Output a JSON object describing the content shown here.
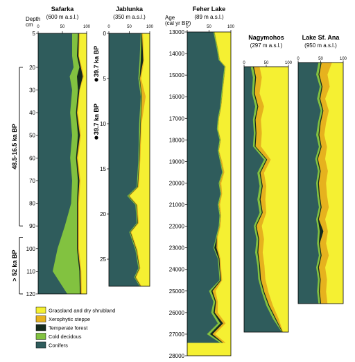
{
  "colors": {
    "grassland": "#f5f032",
    "xerophytic": "#e6b21e",
    "temperate": "#152a1d",
    "cold": "#82c240",
    "conifers": "#2f5c5c"
  },
  "chart_data": [
    {
      "type": "area",
      "title": "Safarka",
      "subtitle": "(600 m a.s.l.)",
      "ylabel": "Depth",
      "yunit": "cm",
      "ylim": [
        5,
        120
      ],
      "yticks": [
        5,
        20,
        30,
        40,
        50,
        60,
        70,
        80,
        90,
        100,
        110,
        120
      ],
      "xlim": [
        0,
        100
      ],
      "xticks": [
        0,
        50,
        100
      ],
      "zones": [
        {
          "label": "48.5-16.5 ka BP",
          "from": 20,
          "to": 90
        },
        {
          "label": "> 52 ka BP",
          "from": 95,
          "to": 120
        }
      ],
      "y": [
        5,
        15,
        20,
        24,
        30,
        40,
        50,
        60,
        70,
        80,
        90,
        100,
        110,
        120
      ],
      "conifers": [
        70,
        70,
        73,
        65,
        70,
        66,
        70,
        66,
        70,
        68,
        55,
        40,
        30,
        60
      ],
      "cold": [
        82,
        80,
        85,
        80,
        82,
        78,
        82,
        78,
        82,
        80,
        80,
        80,
        85,
        86
      ],
      "temperate": [
        84,
        83,
        88,
        92,
        85,
        80,
        86,
        80,
        85,
        82,
        82,
        82,
        87,
        88
      ],
      "xerophytic": [
        86,
        84,
        90,
        94,
        86,
        82,
        88,
        82,
        87,
        84,
        84,
        84,
        89,
        90
      ]
    },
    {
      "type": "area",
      "title": "Jablunka",
      "subtitle": "(350 m a.s.l.)",
      "ylabel": "",
      "yunit": "",
      "ylim": [
        0,
        28
      ],
      "yticks": [
        0,
        5,
        10,
        15,
        20,
        25
      ],
      "xlim": [
        0,
        100
      ],
      "xticks": [
        0,
        50,
        100
      ],
      "markers": [
        {
          "label": "39.7 ka BP",
          "depth": 3.3
        },
        {
          "label": "39.7 ka BP",
          "depth": 9.7
        }
      ],
      "y": [
        0,
        3,
        5,
        7,
        10,
        14,
        17,
        18,
        19,
        21,
        22,
        24,
        26,
        27,
        28
      ],
      "conifers": [
        78,
        75,
        72,
        78,
        74,
        72,
        68,
        45,
        65,
        68,
        50,
        65,
        72,
        62,
        75
      ],
      "cold": [
        80,
        78,
        75,
        80,
        77,
        74,
        70,
        48,
        67,
        70,
        52,
        67,
        74,
        64,
        77
      ],
      "temperate": [
        81,
        84,
        76,
        81,
        78,
        75,
        71,
        49,
        68,
        71,
        53,
        68,
        75,
        65,
        78
      ],
      "xerophytic": [
        83,
        86,
        79,
        90,
        80,
        77,
        73,
        51,
        70,
        73,
        55,
        70,
        77,
        67,
        80
      ]
    },
    {
      "type": "area",
      "title": "Feher Lake",
      "subtitle": "(89 m a.s.l.)",
      "ylabel": "Age",
      "yunit": "(cal yr BP)",
      "ylim": [
        13000,
        28000
      ],
      "yticks": [
        13000,
        14000,
        15000,
        16000,
        17000,
        18000,
        19000,
        20000,
        21000,
        22000,
        23000,
        24000,
        25000,
        26000,
        27000,
        28000
      ],
      "xlim": [
        0,
        100
      ],
      "xticks": [
        0,
        50,
        100
      ],
      "y": [
        13000,
        13800,
        14300,
        14600,
        15500,
        16500,
        17000,
        17500,
        18000,
        18500,
        19000,
        19500,
        20000,
        20500,
        21000,
        21500,
        22000,
        22500,
        23000,
        23500,
        24000,
        24500,
        25000,
        25500,
        26000,
        26500,
        27000,
        27400
      ],
      "conifers": [
        60,
        68,
        72,
        85,
        80,
        75,
        70,
        68,
        74,
        70,
        75,
        80,
        72,
        76,
        70,
        74,
        72,
        66,
        60,
        70,
        72,
        74,
        50,
        60,
        55,
        70,
        45,
        75
      ],
      "cold": [
        62,
        70,
        74,
        87,
        82,
        77,
        72,
        70,
        76,
        72,
        77,
        82,
        74,
        78,
        72,
        76,
        74,
        68,
        62,
        72,
        74,
        76,
        55,
        64,
        60,
        76,
        52,
        80
      ],
      "temperate": [
        62,
        70,
        74,
        87,
        82,
        77,
        72,
        70,
        76,
        72,
        77,
        82,
        74,
        78,
        72,
        76,
        74,
        68,
        67,
        74,
        75,
        78,
        58,
        66,
        63,
        82,
        58,
        82
      ],
      "xerophytic": [
        63,
        71,
        75,
        88,
        83,
        78,
        73,
        71,
        77,
        73,
        80,
        85,
        78,
        80,
        75,
        78,
        76,
        70,
        70,
        76,
        78,
        80,
        65,
        70,
        70,
        88,
        64,
        88
      ]
    },
    {
      "type": "area",
      "title": "Nagymohos",
      "subtitle": "(297 m a.s.l.)",
      "ylabel": "",
      "yunit": "",
      "xlim": [
        0,
        100
      ],
      "xticks": [
        0,
        50,
        100
      ],
      "y": [
        0,
        0.04,
        0.1,
        0.15,
        0.2,
        0.25,
        0.3,
        0.35,
        0.4,
        0.45,
        0.5,
        0.55,
        0.6,
        0.65,
        0.7,
        0.75,
        0.8,
        0.85,
        0.9,
        0.95,
        1.0
      ],
      "conifers": [
        15,
        20,
        18,
        25,
        20,
        22,
        20,
        45,
        30,
        35,
        30,
        35,
        22,
        28,
        25,
        30,
        32,
        40,
        50,
        65,
        85
      ],
      "cold": [
        20,
        25,
        22,
        30,
        24,
        26,
        24,
        50,
        35,
        40,
        35,
        40,
        26,
        32,
        30,
        34,
        36,
        44,
        55,
        70,
        86
      ],
      "temperate": [
        22,
        27,
        24,
        32,
        26,
        28,
        26,
        52,
        37,
        42,
        37,
        42,
        28,
        34,
        32,
        36,
        38,
        46,
        57,
        72,
        87
      ],
      "xerophytic": [
        35,
        40,
        35,
        45,
        38,
        40,
        38,
        60,
        45,
        50,
        48,
        50,
        40,
        45,
        42,
        46,
        48,
        55,
        65,
        78,
        88
      ]
    },
    {
      "type": "area",
      "title": "Lake Sf. Ana",
      "subtitle": "(950 m a.s.l.)",
      "ylabel": "",
      "yunit": "",
      "xlim": [
        0,
        100
      ],
      "xticks": [
        0,
        50,
        100
      ],
      "y": [
        0,
        0.05,
        0.1,
        0.15,
        0.2,
        0.25,
        0.3,
        0.35,
        0.4,
        0.45,
        0.5,
        0.55,
        0.6,
        0.65,
        0.7,
        0.75,
        0.8,
        0.85,
        0.9,
        0.95,
        1.0
      ],
      "conifers": [
        45,
        40,
        48,
        42,
        50,
        44,
        40,
        46,
        38,
        44,
        40,
        42,
        46,
        40,
        44,
        42,
        46,
        40,
        44,
        42,
        45
      ],
      "cold": [
        50,
        45,
        52,
        47,
        54,
        48,
        45,
        50,
        42,
        48,
        44,
        46,
        50,
        44,
        48,
        46,
        50,
        44,
        48,
        46,
        49
      ],
      "temperate": [
        52,
        47,
        54,
        49,
        56,
        50,
        47,
        52,
        44,
        50,
        46,
        48,
        52,
        46,
        56,
        48,
        52,
        46,
        50,
        48,
        51
      ],
      "xerophytic": [
        75,
        65,
        70,
        60,
        68,
        62,
        58,
        64,
        60,
        66,
        62,
        64,
        68,
        60,
        66,
        62,
        68,
        60,
        64,
        62,
        65
      ]
    }
  ],
  "legend": [
    {
      "key": "grassland",
      "label": "Grassland and dry shrubland"
    },
    {
      "key": "xerophytic",
      "label": "Xerophytic steppe"
    },
    {
      "key": "temperate",
      "label": "Temperate forest"
    },
    {
      "key": "cold",
      "label": "Cold decidous"
    },
    {
      "key": "conifers",
      "label": "Conifers"
    }
  ]
}
